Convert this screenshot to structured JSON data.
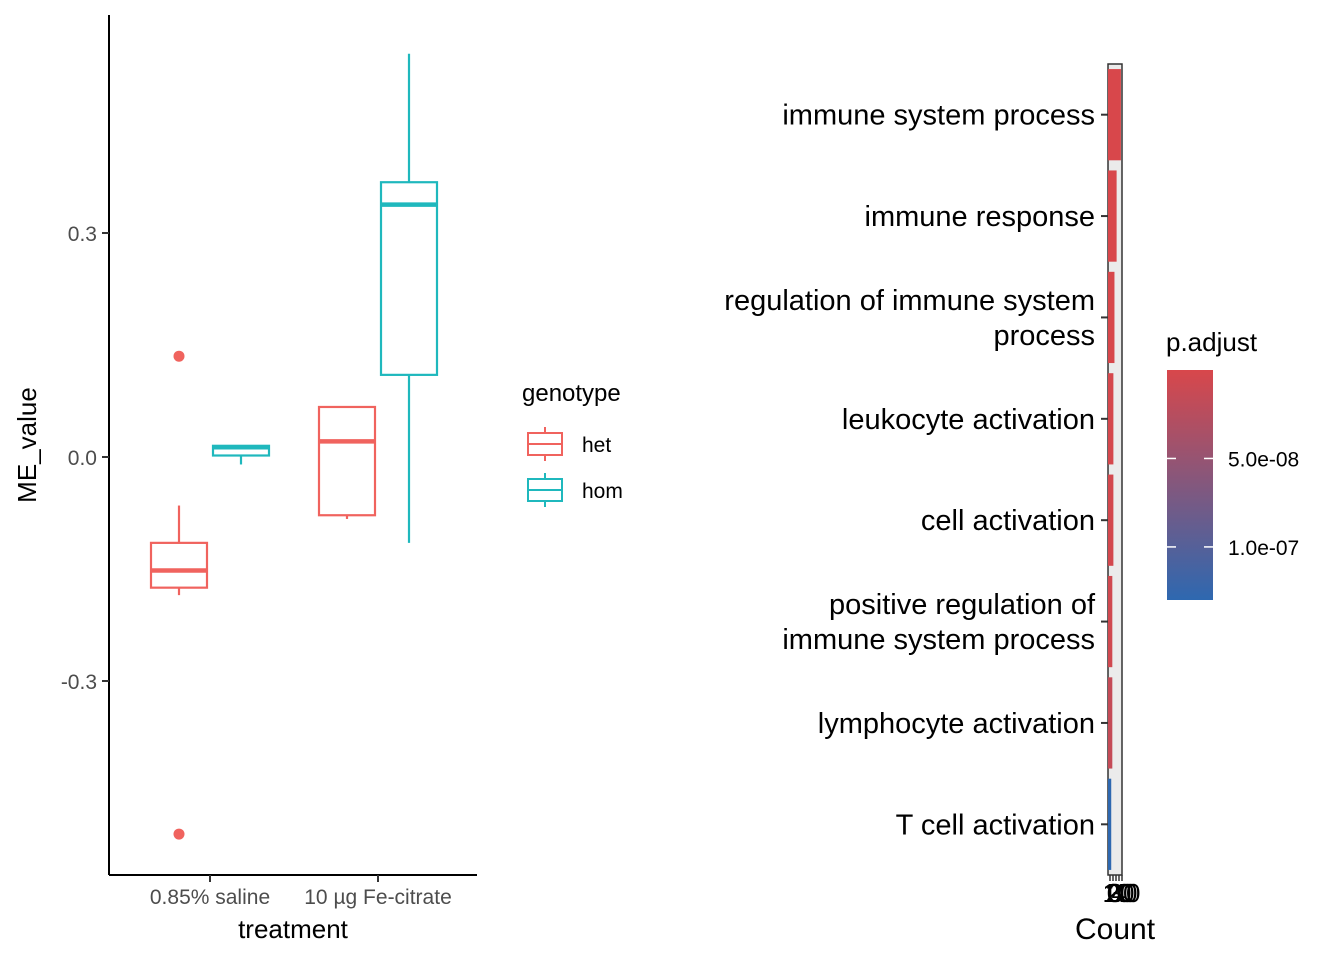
{
  "colors": {
    "het": "#F0635E",
    "hom": "#1FB8BD",
    "axis": "#000000",
    "tick_text": "#4D4D4D",
    "gradient_high": "#D8474B",
    "gradient_low": "#2E68B0"
  },
  "chart_data": [
    {
      "type": "box",
      "xlabel": "treatment",
      "ylabel": "ME_value",
      "categories": [
        "0.85% saline",
        "10 µg Fe-citrate"
      ],
      "ylim": [
        -0.55,
        0.58
      ],
      "yticks": [
        0.3,
        0.0,
        -0.3
      ],
      "ytick_labels": [
        "0.3",
        "0.0",
        "-0.3"
      ],
      "legend": {
        "title": "genotype",
        "placement": "right",
        "entries": [
          "het",
          "hom"
        ]
      },
      "series": [
        {
          "name": "het",
          "boxes": [
            {
              "category": "0.85% saline",
              "lower_whisker": -0.185,
              "q1": -0.175,
              "median": -0.152,
              "q3": -0.115,
              "upper_whisker": -0.065,
              "outliers": [
                0.135,
                -0.505
              ]
            },
            {
              "category": "10 µg Fe-citrate",
              "lower_whisker": -0.083,
              "q1": -0.078,
              "median": 0.021,
              "q3": 0.067,
              "upper_whisker": 0.067,
              "outliers": []
            }
          ]
        },
        {
          "name": "hom",
          "boxes": [
            {
              "category": "0.85% saline",
              "lower_whisker": -0.01,
              "q1": 0.002,
              "median": 0.013,
              "q3": 0.015,
              "upper_whisker": 0.015,
              "outliers": []
            },
            {
              "category": "10 µg Fe-citrate",
              "lower_whisker": -0.115,
              "q1": 0.11,
              "median": 0.338,
              "q3": 0.368,
              "upper_whisker": 0.54,
              "outliers": []
            }
          ]
        }
      ]
    },
    {
      "type": "bar",
      "orientation": "horizontal",
      "xlabel": "Count",
      "ylabel": "",
      "xlim": [
        0,
        13
      ],
      "xtick_labels": [
        "0",
        "10",
        "20",
        "30",
        "40"
      ],
      "categories": [
        "immune system process",
        "immune response",
        "regulation of immune system process",
        "leukocyte activation",
        "cell activation",
        "positive regulation of immune system process",
        "lymphocyte activation",
        "T cell activation"
      ],
      "category_lines": [
        [
          "immune system process"
        ],
        [
          "immune response"
        ],
        [
          "regulation of immune system",
          "process"
        ],
        [
          "leukocyte activation"
        ],
        [
          "cell activation"
        ],
        [
          "positive regulation of",
          "immune system process"
        ],
        [
          "lymphocyte activation"
        ],
        [
          "T cell activation"
        ]
      ],
      "values": [
        12,
        8,
        6,
        5,
        5,
        4,
        4,
        3
      ],
      "p_adjust": [
        1.5e-11,
        2e-10,
        6e-10,
        2e-09,
        4e-09,
        6e-09,
        1.5e-08,
        1.3e-07
      ],
      "legend": {
        "title": "p.adjust",
        "placement": "right",
        "ticks": [
          5e-08,
          1e-07
        ],
        "tick_labels": [
          "5.0e-08",
          "1.0e-07"
        ],
        "range": [
          0,
          1.3e-07
        ]
      }
    }
  ]
}
